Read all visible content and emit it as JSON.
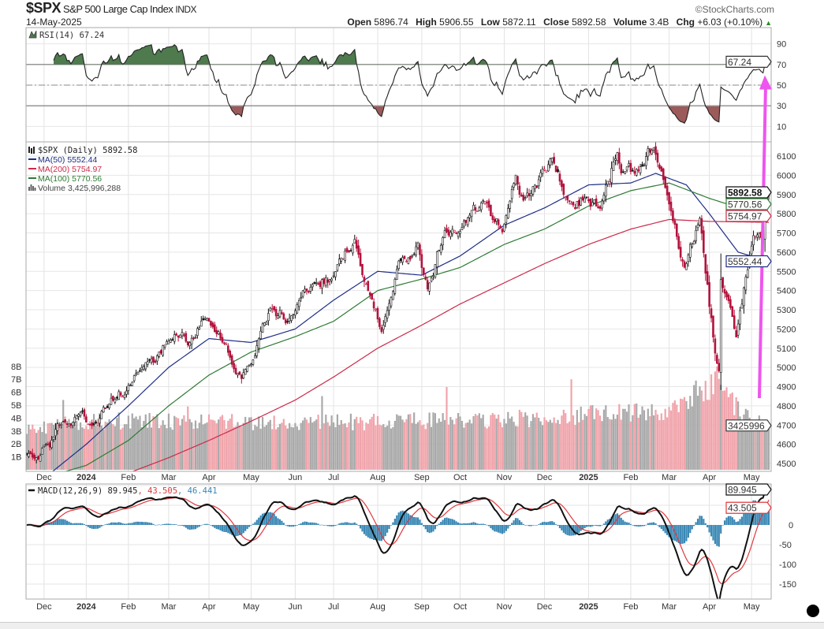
{
  "header": {
    "symbol": "$SPX",
    "name": "S&P 500 Large Cap Index",
    "exchange": "INDX",
    "date": "14-May-2025",
    "source": "©StockCharts.com",
    "open_label": "Open",
    "open": "5896.74",
    "high_label": "High",
    "high": "5906.55",
    "low_label": "Low",
    "low": "5872.11",
    "close_label": "Close",
    "close": "5892.58",
    "volume_label": "Volume",
    "volume": "3.4B",
    "chg_label": "Chg",
    "chg": "+6.03 (+0.10%)",
    "chg_direction_icon": "triangle-up-icon"
  },
  "colors": {
    "up_candle": "#111111",
    "down_candle": "#b3123c",
    "ma50": "#1f2d86",
    "ma200": "#cc2a4a",
    "ma100": "#2f7a34",
    "volume_up": "#a9a9a9",
    "volume_down": "#f0a4ab",
    "rsi_overbought_fill": "#4e7a4e",
    "rsi_oversold_fill": "#9c5a5a",
    "macd": "#111111",
    "signal": "#e0393e",
    "histogram": "#3a88b5",
    "annotation_arrow": "#ee55ee"
  },
  "chart_data": {
    "type": "candlestick",
    "period": "Daily",
    "date_range": [
      "2023-11-20",
      "2025-05-14"
    ],
    "month_labels": [
      {
        "label": "Dec",
        "date": "2023-12-01"
      },
      {
        "label": "2024",
        "date": "2024-01-02",
        "bold": true
      },
      {
        "label": "Feb",
        "date": "2024-02-01"
      },
      {
        "label": "Mar",
        "date": "2024-03-01"
      },
      {
        "label": "Apr",
        "date": "2024-04-01"
      },
      {
        "label": "May",
        "date": "2024-05-01"
      },
      {
        "label": "Jun",
        "date": "2024-06-03"
      },
      {
        "label": "Jul",
        "date": "2024-07-01"
      },
      {
        "label": "Aug",
        "date": "2024-08-01"
      },
      {
        "label": "Sep",
        "date": "2024-09-03"
      },
      {
        "label": "Oct",
        "date": "2024-10-01"
      },
      {
        "label": "Nov",
        "date": "2024-11-01"
      },
      {
        "label": "Dec",
        "date": "2024-12-02"
      },
      {
        "label": "2025",
        "date": "2025-01-02",
        "bold": true
      },
      {
        "label": "Feb",
        "date": "2025-02-03"
      },
      {
        "label": "Mar",
        "date": "2025-03-03"
      },
      {
        "label": "Apr",
        "date": "2025-04-01"
      },
      {
        "label": "May",
        "date": "2025-05-01"
      }
    ],
    "price": {
      "legend": "$SPX (Daily) 5892.58",
      "last_tag": "5892.58",
      "ylim": [
        4450,
        6180
      ],
      "ticks": [
        6100,
        6000,
        5900,
        5800,
        5700,
        5600,
        5500,
        5400,
        5300,
        5200,
        5100,
        5000,
        4900,
        4800,
        4700,
        4600,
        4500
      ],
      "close_keypoints": [
        [
          "2023-11-20",
          4547
        ],
        [
          "2023-12-01",
          4595
        ],
        [
          "2023-12-15",
          4719
        ],
        [
          "2023-12-29",
          4770
        ],
        [
          "2024-01-05",
          4697
        ],
        [
          "2024-01-19",
          4840
        ],
        [
          "2024-02-01",
          4906
        ],
        [
          "2024-02-15",
          5030
        ],
        [
          "2024-03-01",
          5137
        ],
        [
          "2024-03-15",
          5117
        ],
        [
          "2024-03-28",
          5254
        ],
        [
          "2024-04-12",
          5123
        ],
        [
          "2024-04-19",
          4967
        ],
        [
          "2024-05-01",
          5018
        ],
        [
          "2024-05-15",
          5308
        ],
        [
          "2024-05-31",
          5277
        ],
        [
          "2024-06-14",
          5431
        ],
        [
          "2024-06-28",
          5460
        ],
        [
          "2024-07-16",
          5667
        ],
        [
          "2024-07-25",
          5399
        ],
        [
          "2024-08-05",
          5186
        ],
        [
          "2024-08-16",
          5554
        ],
        [
          "2024-08-30",
          5648
        ],
        [
          "2024-09-06",
          5408
        ],
        [
          "2024-09-19",
          5713
        ],
        [
          "2024-10-01",
          5708
        ],
        [
          "2024-10-18",
          5864
        ],
        [
          "2024-10-31",
          5705
        ],
        [
          "2024-11-11",
          6001
        ],
        [
          "2024-11-15",
          5870
        ],
        [
          "2024-11-29",
          6032
        ],
        [
          "2024-12-06",
          6090
        ],
        [
          "2024-12-18",
          5872
        ],
        [
          "2024-12-31",
          5882
        ],
        [
          "2025-01-10",
          5827
        ],
        [
          "2025-01-23",
          6119
        ],
        [
          "2025-01-27",
          6012
        ],
        [
          "2025-02-07",
          6026
        ],
        [
          "2025-02-19",
          6144
        ],
        [
          "2025-03-03",
          5850
        ],
        [
          "2025-03-13",
          5521
        ],
        [
          "2025-03-25",
          5776
        ],
        [
          "2025-04-04",
          5074
        ],
        [
          "2025-04-08",
          4982
        ],
        [
          "2025-04-09",
          5457
        ],
        [
          "2025-04-21",
          5158
        ],
        [
          "2025-05-02",
          5686
        ],
        [
          "2025-05-09",
          5660
        ],
        [
          "2025-05-12",
          5844
        ],
        [
          "2025-05-14",
          5892.58
        ]
      ],
      "last_bar": {
        "open": 5896.74,
        "high": 5906.55,
        "low": 5872.11,
        "close": 5892.58
      }
    },
    "moving_averages": [
      {
        "name": "MA(50)",
        "legend": "MA(50) 5552.44",
        "last_tag": "5552.44",
        "color_key": "ma50",
        "keypoints": [
          [
            "2023-11-20",
            4350
          ],
          [
            "2024-01-02",
            4600
          ],
          [
            "2024-02-01",
            4800
          ],
          [
            "2024-03-01",
            5000
          ],
          [
            "2024-04-01",
            5150
          ],
          [
            "2024-05-01",
            5130
          ],
          [
            "2024-06-03",
            5200
          ],
          [
            "2024-07-01",
            5350
          ],
          [
            "2024-08-01",
            5500
          ],
          [
            "2024-09-03",
            5480
          ],
          [
            "2024-10-01",
            5580
          ],
          [
            "2024-11-01",
            5740
          ],
          [
            "2024-12-02",
            5830
          ],
          [
            "2025-01-02",
            5950
          ],
          [
            "2025-02-03",
            5960
          ],
          [
            "2025-02-20",
            6010
          ],
          [
            "2025-03-14",
            5950
          ],
          [
            "2025-04-01",
            5800
          ],
          [
            "2025-04-22",
            5600
          ],
          [
            "2025-05-14",
            5552.44
          ]
        ]
      },
      {
        "name": "MA(200)",
        "legend": "MA(200) 5754.97",
        "last_tag": "5754.97",
        "color_key": "ma200",
        "keypoints": [
          [
            "2023-11-20",
            4250
          ],
          [
            "2024-01-02",
            4380
          ],
          [
            "2024-02-01",
            4450
          ],
          [
            "2024-03-01",
            4530
          ],
          [
            "2024-04-01",
            4620
          ],
          [
            "2024-05-01",
            4720
          ],
          [
            "2024-06-03",
            4830
          ],
          [
            "2024-07-01",
            4950
          ],
          [
            "2024-08-01",
            5100
          ],
          [
            "2024-09-03",
            5220
          ],
          [
            "2024-10-01",
            5330
          ],
          [
            "2024-11-01",
            5440
          ],
          [
            "2024-12-02",
            5540
          ],
          [
            "2025-01-02",
            5640
          ],
          [
            "2025-02-03",
            5720
          ],
          [
            "2025-03-03",
            5770
          ],
          [
            "2025-04-01",
            5760
          ],
          [
            "2025-05-14",
            5754.97
          ]
        ]
      },
      {
        "name": "MA(100)",
        "legend": "MA(100) 5770.56",
        "last_tag": "5770.56",
        "color_key": "ma100",
        "keypoints": [
          [
            "2023-11-20",
            4400
          ],
          [
            "2024-01-02",
            4490
          ],
          [
            "2024-02-01",
            4620
          ],
          [
            "2024-03-01",
            4800
          ],
          [
            "2024-04-01",
            4960
          ],
          [
            "2024-05-01",
            5080
          ],
          [
            "2024-06-03",
            5160
          ],
          [
            "2024-07-01",
            5240
          ],
          [
            "2024-08-01",
            5400
          ],
          [
            "2024-09-03",
            5460
          ],
          [
            "2024-10-01",
            5520
          ],
          [
            "2024-11-01",
            5640
          ],
          [
            "2024-12-02",
            5720
          ],
          [
            "2025-01-02",
            5840
          ],
          [
            "2025-02-03",
            5920
          ],
          [
            "2025-03-03",
            5960
          ],
          [
            "2025-04-01",
            5880
          ],
          [
            "2025-05-01",
            5810
          ],
          [
            "2025-05-14",
            5770.56
          ]
        ]
      }
    ],
    "volume": {
      "legend": "Volume 3,425,996,288",
      "last_tag": "3425996",
      "ticks": [
        "8B",
        "7B",
        "6B",
        "5B",
        "4B",
        "3B",
        "2B",
        "1B"
      ],
      "tick_values_B": [
        8,
        7,
        6,
        5,
        4,
        3,
        2,
        1
      ],
      "level_keypoints_B": [
        [
          "2023-11-20",
          3.2
        ],
        [
          "2024-01-02",
          3.8
        ],
        [
          "2024-06-03",
          3.6
        ],
        [
          "2024-11-01",
          3.9
        ],
        [
          "2025-03-03",
          4.6
        ],
        [
          "2025-04-07",
          6.5
        ],
        [
          "2025-04-25",
          4.2
        ],
        [
          "2025-05-14",
          3.43
        ]
      ],
      "spikes_B": [
        [
          "2023-12-15",
          5.4
        ],
        [
          "2024-03-15",
          4.9
        ],
        [
          "2024-06-21",
          5.7
        ],
        [
          "2024-09-20",
          6.4
        ],
        [
          "2024-12-20",
          7.0
        ],
        [
          "2025-03-21",
          6.9
        ],
        [
          "2025-04-04",
          7.6
        ],
        [
          "2025-04-07",
          8.0
        ]
      ]
    },
    "rsi": {
      "legend": "RSI(14) 67.24",
      "last_tag": "67.24",
      "period": 14,
      "ylim": [
        0,
        110
      ],
      "ticks": [
        90,
        70,
        50,
        30,
        10
      ],
      "overbought": 70,
      "oversold": 30,
      "midline": 50
    },
    "macd": {
      "legend_name": "MACD(12,26,9) 89.945",
      "legend_signal": ", 43.505",
      "legend_hist": ", 46.441",
      "macd_tag": "89.945",
      "signal_tag": "43.505",
      "params": [
        12,
        26,
        9
      ],
      "ticks": [
        0,
        -50,
        -100,
        -150
      ]
    },
    "annotation": {
      "type": "arrow",
      "from_date": "2025-05-05",
      "from_price": 4840,
      "to_date": "2025-05-14",
      "to_rsi": 58
    }
  }
}
